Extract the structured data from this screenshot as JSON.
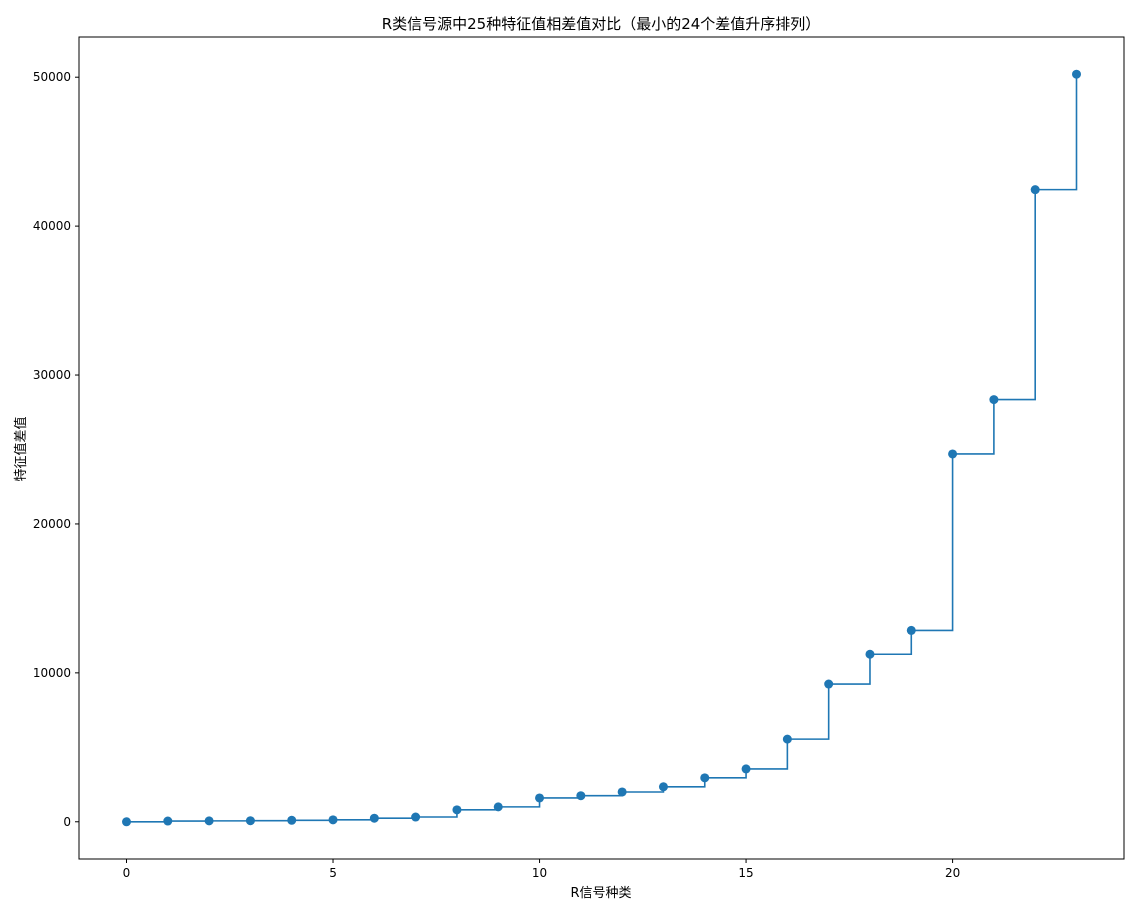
{
  "chart_data": {
    "type": "line",
    "style": "step-post",
    "title": "R类信号源中25种特征值相差值对比（最小的24个差值升序排列）",
    "xlabel": "R信号种类",
    "ylabel": "特征值差值",
    "xlim": [
      -1.15,
      24.15
    ],
    "ylim": [
      -2500,
      52700
    ],
    "xticks": [
      0,
      5,
      10,
      15,
      20
    ],
    "yticks": [
      0,
      10000,
      20000,
      30000,
      40000,
      50000
    ],
    "grid": false,
    "legend": "none",
    "series": [
      {
        "color": "#1f77b4",
        "marker": "circle",
        "x": [
          0,
          1,
          2,
          3,
          4,
          5,
          6,
          7,
          8,
          9,
          10,
          11,
          12,
          13,
          14,
          15,
          16,
          17,
          18,
          19,
          20,
          21,
          22,
          23
        ],
        "y": [
          0,
          50,
          60,
          70,
          100,
          130,
          240,
          320,
          800,
          1000,
          1600,
          1750,
          2000,
          2350,
          2950,
          3550,
          5550,
          9250,
          11250,
          12850,
          24700,
          28350,
          42450,
          50200
        ]
      }
    ]
  }
}
